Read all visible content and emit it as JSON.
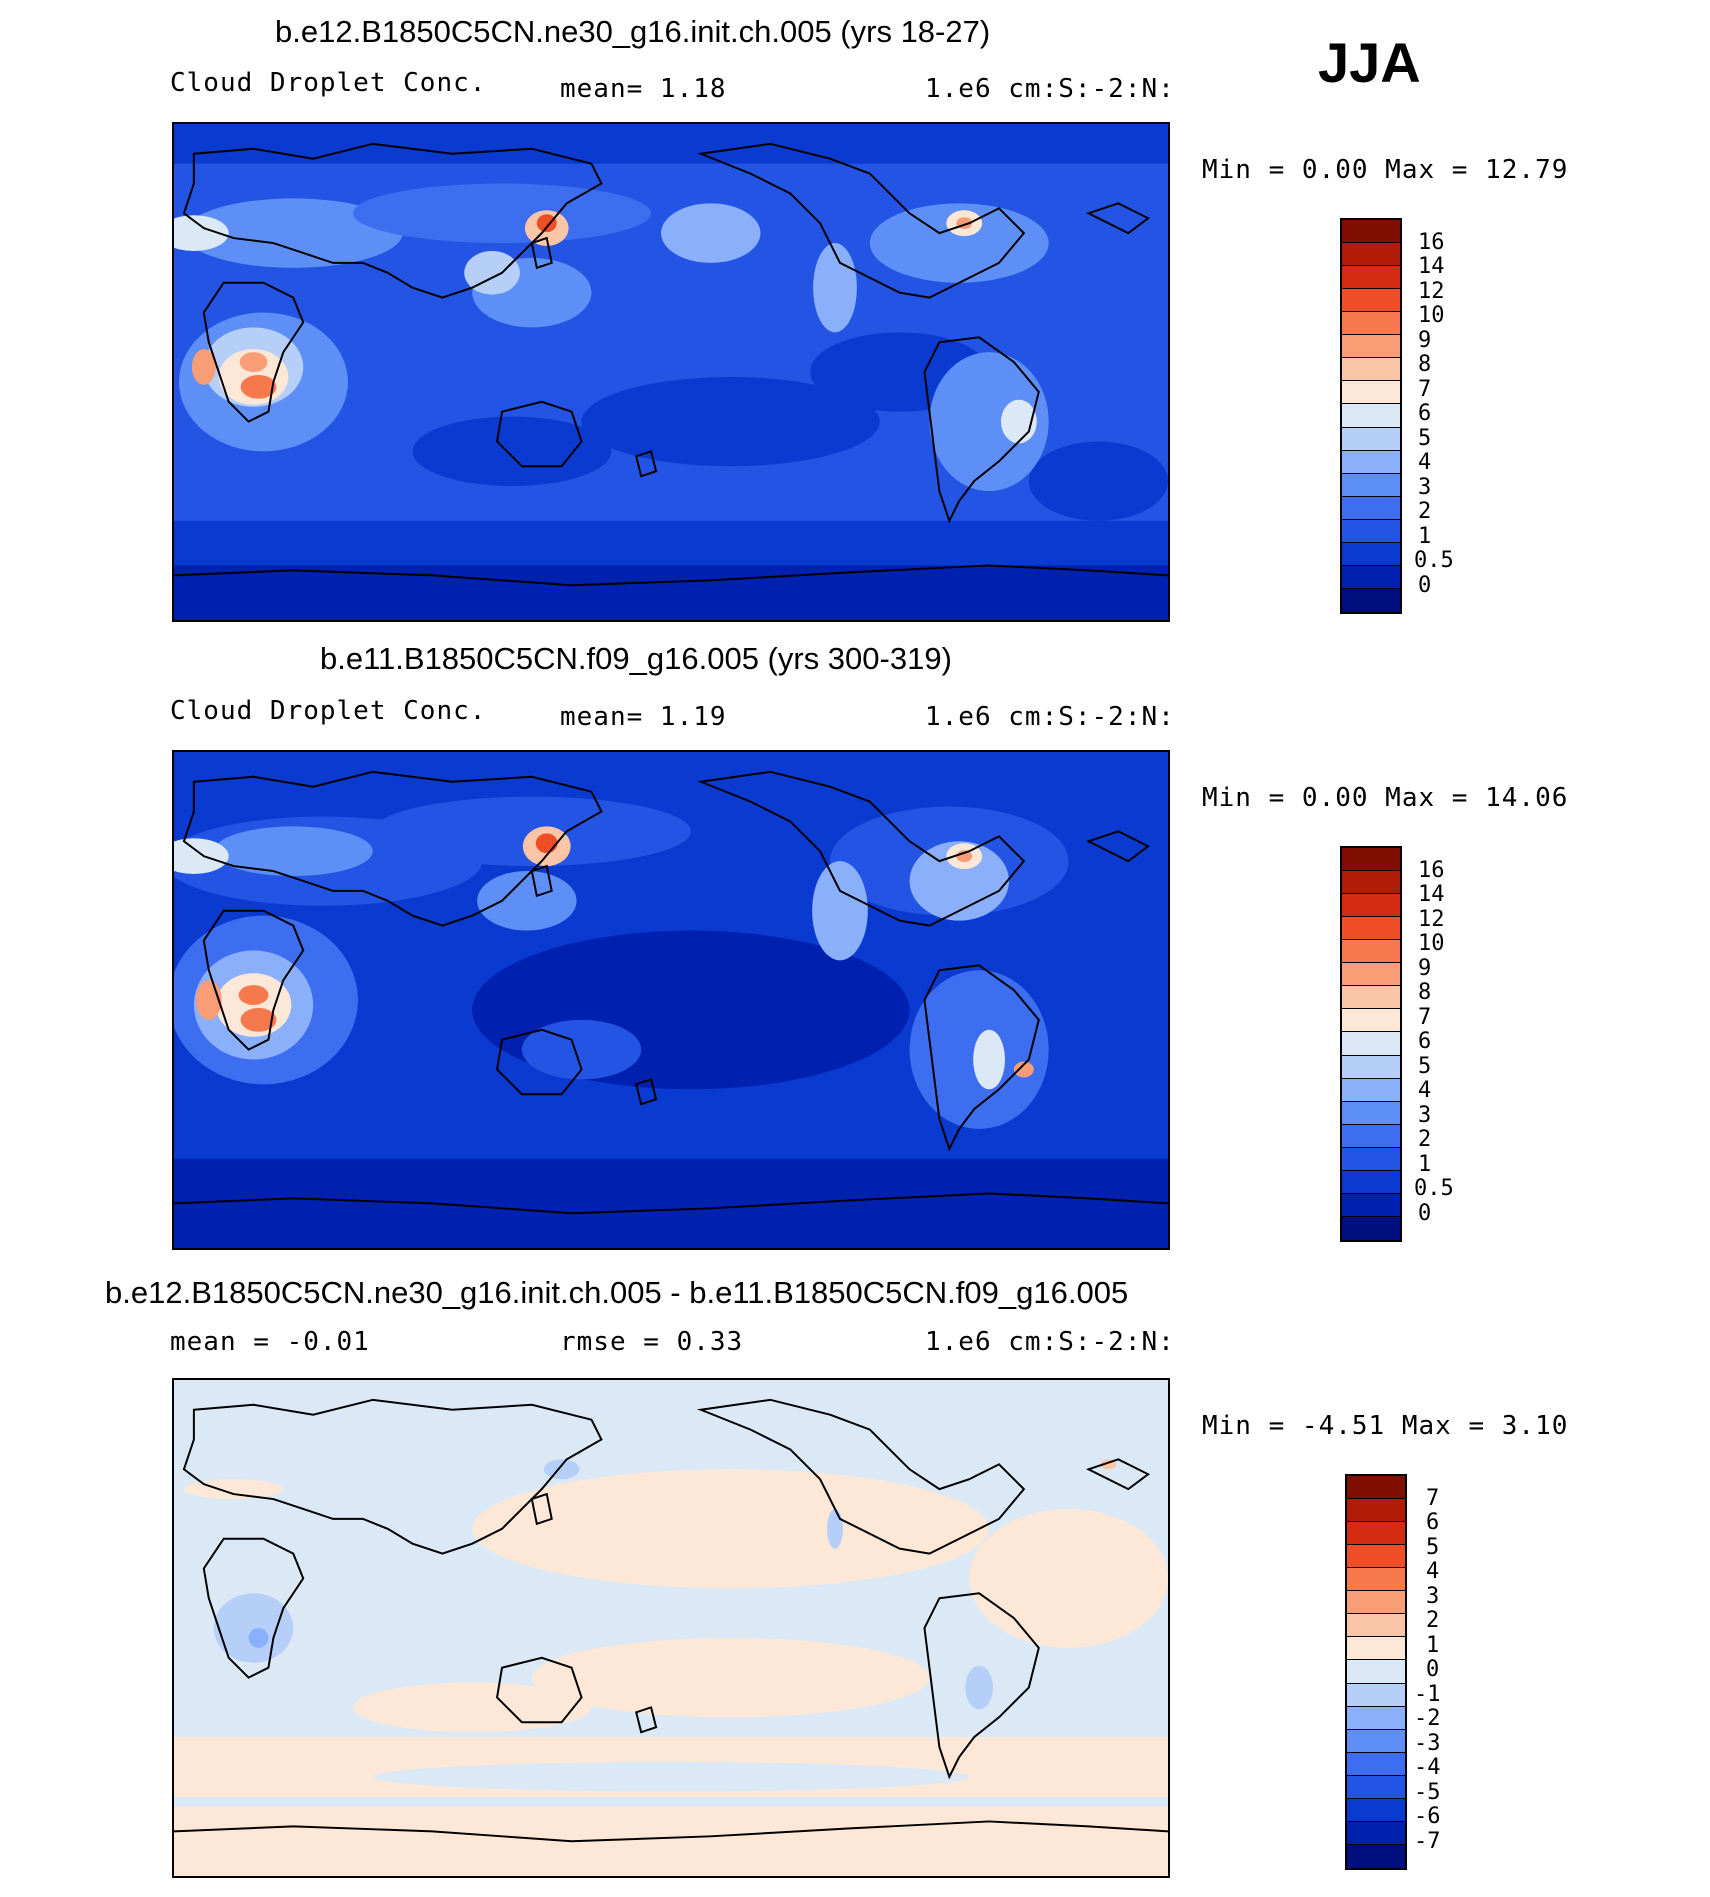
{
  "season": "JJA",
  "colors": {
    "abs_levels": [
      "#000e7f",
      "#0020b0",
      "#0a3ad0",
      "#2354e4",
      "#3d6eef",
      "#5d8ff7",
      "#8bb0fb",
      "#b5cff8",
      "#dbe9f7",
      "#fde8d8",
      "#fbc5a8",
      "#f89d76",
      "#f6794d",
      "#ee4d25",
      "#d42c10",
      "#b01c08",
      "#7f0d00"
    ],
    "diff_levels": [
      "#000e7f",
      "#0020b0",
      "#0a3ad0",
      "#2354e4",
      "#3d6eef",
      "#5d8ff7",
      "#8bb0fb",
      "#b5cff8",
      "#dbe9f7",
      "#fde8d8",
      "#fbc5a8",
      "#f89d76",
      "#f6794d",
      "#ee4d25",
      "#d42c10",
      "#b01c08",
      "#7f0d00"
    ]
  },
  "panels": [
    {
      "title": "b.e12.B1850C5CN.ne30_g16.init.ch.005 (yrs 18-27)",
      "left_label": "Cloud Droplet Conc.",
      "mid_label": "mean=    1.18",
      "units": "1.e6 cm:S:-2:N:",
      "minmax": "Min =    0.00 Max =   12.79",
      "ticks": [
        "16",
        "14",
        "12",
        "10",
        "9",
        "8",
        "7",
        "6",
        "5",
        "4",
        "3",
        "2",
        "1",
        "0.5",
        "0"
      ],
      "min": 0.0,
      "max": 12.79,
      "mean": 1.18
    },
    {
      "title": "b.e11.B1850C5CN.f09_g16.005 (yrs 300-319)",
      "left_label": "Cloud Droplet Conc.",
      "mid_label": "mean=    1.19",
      "units": "1.e6 cm:S:-2:N:",
      "minmax": "Min =    0.00 Max =   14.06",
      "ticks": [
        "16",
        "14",
        "12",
        "10",
        "9",
        "8",
        "7",
        "6",
        "5",
        "4",
        "3",
        "2",
        "1",
        "0.5",
        "0"
      ],
      "min": 0.0,
      "max": 14.06,
      "mean": 1.19
    },
    {
      "title": "b.e12.B1850C5CN.ne30_g16.init.ch.005 - b.e11.B1850C5CN.f09_g16.005",
      "left_label": "mean =   -0.01",
      "mid_label": "rmse =    0.33",
      "units": "1.e6 cm:S:-2:N:",
      "minmax": "Min =  -4.51 Max =    3.10",
      "ticks": [
        "7",
        "6",
        "5",
        "4",
        "3",
        "2",
        "1",
        "0",
        "-1",
        "-2",
        "-3",
        "-4",
        "-5",
        "-6",
        "-7"
      ],
      "min": -4.51,
      "max": 3.1,
      "mean": -0.01,
      "rmse": 0.33
    }
  ]
}
